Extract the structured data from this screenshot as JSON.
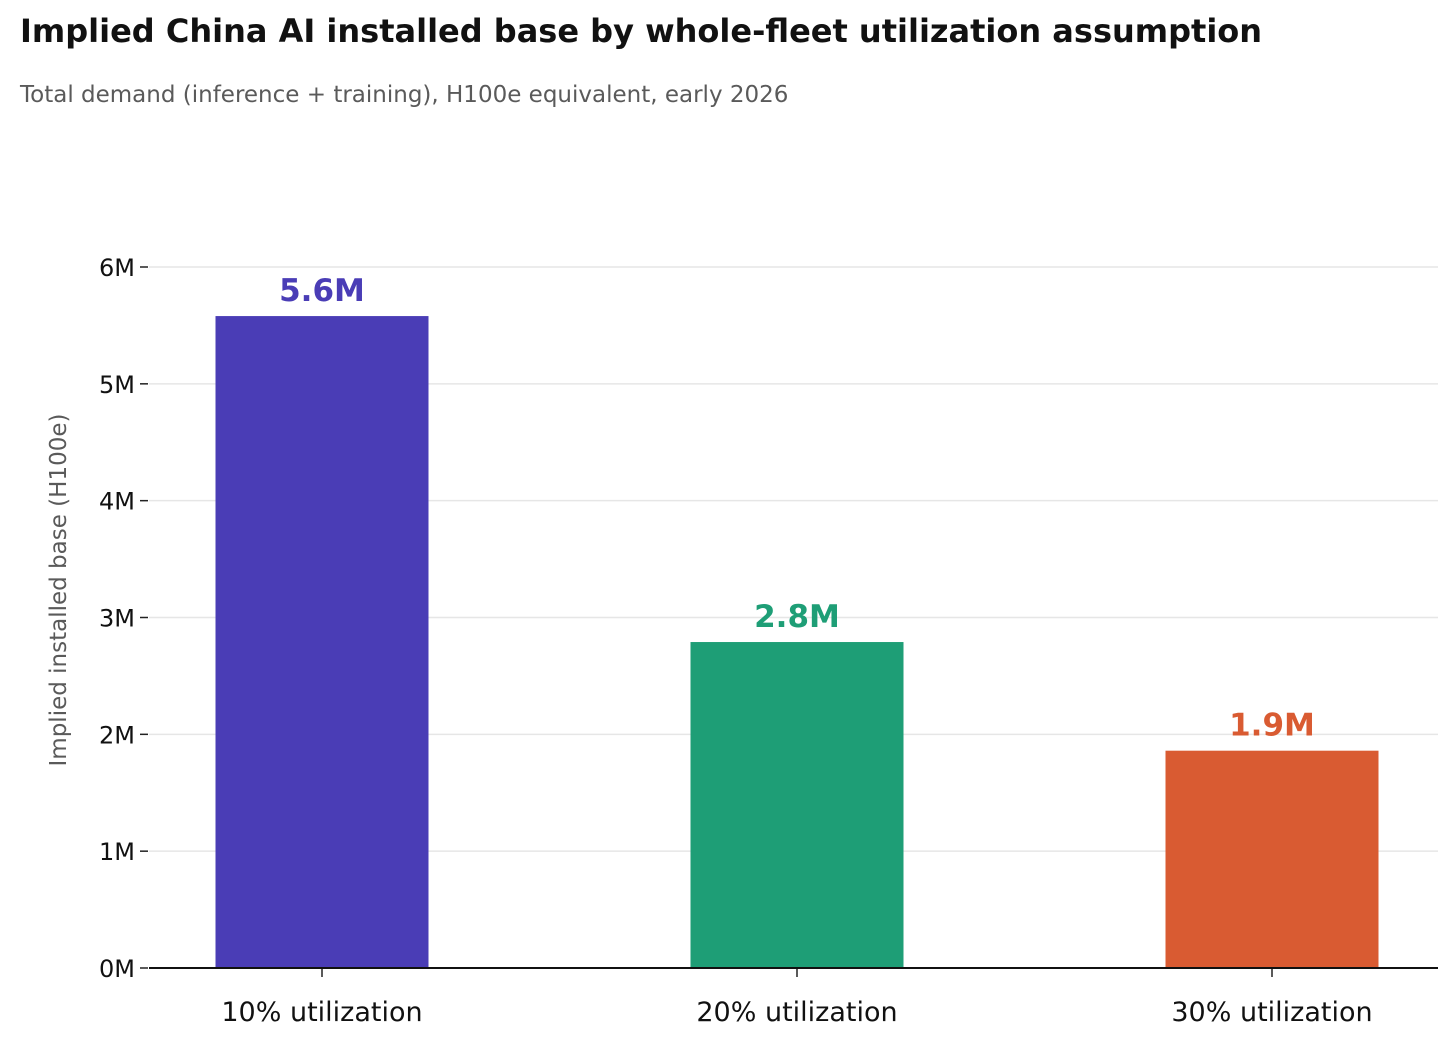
{
  "chart_data": {
    "type": "bar",
    "title": "Implied China AI installed base by whole-fleet utilization assumption",
    "subtitle": "Total demand (inference + training), H100e equivalent, early 2026",
    "xlabel": "",
    "ylabel": "Implied installed base (H100e)",
    "categories": [
      "10% utilization",
      "20% utilization",
      "30% utilization"
    ],
    "values": [
      5.58,
      2.79,
      1.86
    ],
    "value_labels": [
      "5.6M",
      "2.8M",
      "1.9M"
    ],
    "colors": [
      "#4a3db6",
      "#1e9e76",
      "#d95b32"
    ],
    "ylim": [
      0,
      6
    ],
    "yticks": [
      0,
      1,
      2,
      3,
      4,
      5,
      6
    ],
    "ytick_labels": [
      "0M",
      "1M",
      "2M",
      "3M",
      "4M",
      "5M",
      "6M"
    ],
    "grid": true,
    "units": "millions"
  }
}
